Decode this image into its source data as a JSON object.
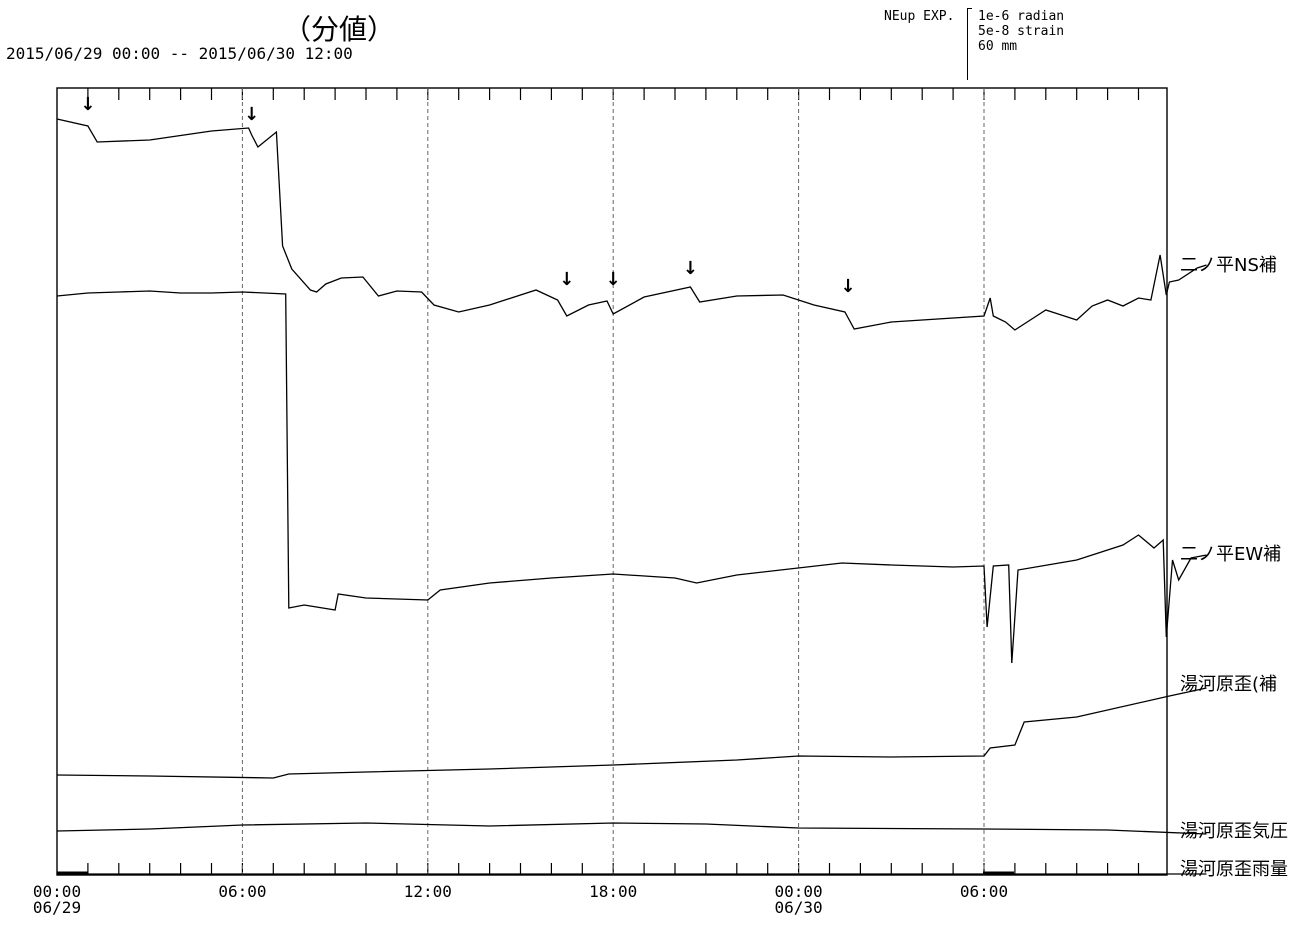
{
  "header": {
    "title": "（分値）",
    "range": "2015/06/29 00:00 -- 2015/06/30 12:00",
    "scale_header": "NEup EXP.",
    "scale_lines": [
      "1e-6 radian",
      "5e-8 strain",
      "60 mm"
    ]
  },
  "chart_data": {
    "type": "line",
    "title": "（分値）",
    "x_axis": {
      "start": "2015/06/29 00:00",
      "end": "2015/06/30 12:00",
      "ticks": [
        {
          "time": "00:00",
          "date": "06/29"
        },
        {
          "time": "06:00",
          "date": ""
        },
        {
          "time": "12:00",
          "date": ""
        },
        {
          "time": "18:00",
          "date": ""
        },
        {
          "time": "00:00",
          "date": "06/30"
        },
        {
          "time": "06:00",
          "date": ""
        }
      ]
    },
    "grid": "vertical dashed at 6-hour intervals",
    "scale": {
      "radian": "1e-6",
      "strain": "5e-8",
      "mm": "60"
    },
    "events_hours": [
      1,
      6.3,
      16.5,
      18,
      20.5,
      25.6
    ],
    "series": [
      {
        "name": "二ノ平NS補",
        "points": [
          [
            0,
            119
          ],
          [
            1,
            126
          ],
          [
            1.3,
            142
          ],
          [
            3,
            140
          ],
          [
            5,
            131
          ],
          [
            6.2,
            128
          ],
          [
            6.3,
            135
          ],
          [
            6.5,
            147
          ],
          [
            7.1,
            132
          ],
          [
            7.3,
            246
          ],
          [
            7.6,
            269
          ],
          [
            8.2,
            290
          ],
          [
            8.4,
            292
          ],
          [
            8.7,
            284
          ],
          [
            9.2,
            278
          ],
          [
            9.9,
            277
          ],
          [
            10.4,
            296
          ],
          [
            11,
            291
          ],
          [
            11.8,
            292
          ],
          [
            12.2,
            305
          ],
          [
            13,
            312
          ],
          [
            14,
            305
          ],
          [
            15.5,
            290
          ],
          [
            16.2,
            300
          ],
          [
            16.5,
            316
          ],
          [
            17.2,
            305
          ],
          [
            17.8,
            301
          ],
          [
            18,
            314
          ],
          [
            19,
            297
          ],
          [
            20.5,
            287
          ],
          [
            20.8,
            302
          ],
          [
            22,
            296
          ],
          [
            23.5,
            295
          ],
          [
            24.5,
            305
          ],
          [
            25.5,
            312
          ],
          [
            25.8,
            329
          ],
          [
            27,
            322
          ],
          [
            30,
            316
          ],
          [
            30.2,
            298
          ],
          [
            30.3,
            316
          ],
          [
            30.7,
            322
          ],
          [
            31,
            330
          ],
          [
            31.5,
            320
          ],
          [
            32,
            310
          ],
          [
            32.5,
            315
          ],
          [
            33,
            320
          ],
          [
            33.5,
            306
          ],
          [
            34,
            300
          ],
          [
            34.5,
            306
          ],
          [
            35,
            298
          ],
          [
            35.4,
            300
          ],
          [
            35.7,
            255
          ],
          [
            35.9,
            295
          ],
          [
            36,
            282
          ],
          [
            36.3,
            280
          ],
          [
            36.9,
            268
          ],
          [
            37.2,
            265
          ]
        ]
      },
      {
        "name": "二ノ平EW補",
        "points": [
          [
            0,
            296
          ],
          [
            1,
            293
          ],
          [
            2,
            292
          ],
          [
            3,
            291
          ],
          [
            4,
            293
          ],
          [
            5,
            293
          ],
          [
            6,
            292
          ],
          [
            7.4,
            294
          ],
          [
            7.5,
            608
          ],
          [
            8,
            605
          ],
          [
            9,
            610
          ],
          [
            9.1,
            594
          ],
          [
            10,
            598
          ],
          [
            12,
            600
          ],
          [
            12.4,
            590
          ],
          [
            14,
            583
          ],
          [
            16,
            578
          ],
          [
            18,
            574
          ],
          [
            20,
            578
          ],
          [
            20.7,
            583
          ],
          [
            22,
            575
          ],
          [
            25.4,
            563
          ],
          [
            27,
            565
          ],
          [
            29,
            567
          ],
          [
            30,
            566
          ],
          [
            30.1,
            627
          ],
          [
            30.3,
            566
          ],
          [
            30.8,
            565
          ],
          [
            30.9,
            663
          ],
          [
            31.1,
            570
          ],
          [
            33,
            560
          ],
          [
            34.5,
            545
          ],
          [
            35,
            535
          ],
          [
            35.5,
            548
          ],
          [
            35.8,
            540
          ],
          [
            35.9,
            637
          ],
          [
            36.1,
            560
          ],
          [
            36.3,
            580
          ],
          [
            36.7,
            558
          ],
          [
            37.2,
            555
          ]
        ]
      },
      {
        "name": "湯河原歪(補",
        "points": [
          [
            0,
            775
          ],
          [
            3,
            776
          ],
          [
            7,
            778
          ],
          [
            7.5,
            774
          ],
          [
            10,
            772
          ],
          [
            14,
            769
          ],
          [
            18,
            765
          ],
          [
            22,
            760
          ],
          [
            24,
            756
          ],
          [
            27,
            757
          ],
          [
            30,
            756
          ],
          [
            30.2,
            748
          ],
          [
            31,
            745
          ],
          [
            31.3,
            722
          ],
          [
            33,
            717
          ],
          [
            36,
            696
          ],
          [
            37.2,
            688
          ]
        ]
      },
      {
        "name": "湯河原歪気圧",
        "points": [
          [
            0,
            831
          ],
          [
            3,
            829
          ],
          [
            6,
            825
          ],
          [
            10,
            823
          ],
          [
            14,
            826
          ],
          [
            18,
            823
          ],
          [
            21,
            824
          ],
          [
            24,
            828
          ],
          [
            30,
            829
          ],
          [
            34,
            830
          ],
          [
            37.2,
            834
          ]
        ]
      },
      {
        "name": "湯河原歪雨量",
        "points": [
          [
            0,
            874
          ],
          [
            37.2,
            874
          ]
        ]
      }
    ]
  }
}
